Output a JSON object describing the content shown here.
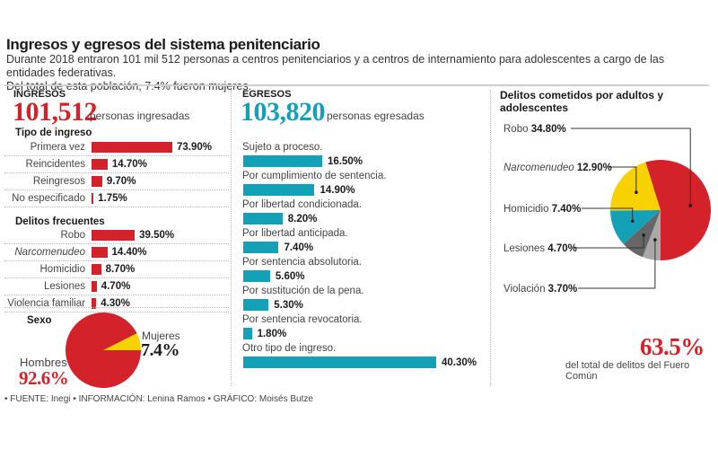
{
  "header": {
    "title": "Ingresos y egresos del sistema penitenciario",
    "subtitle_line1": "Durante 2018 entraron 101 mil 512 personas a centros penitenciarios y a centros de internamiento para adolescentes a cargo de las entidades federativas.",
    "subtitle_line2": "Del total de esta población, 7.4% fueron mujeres."
  },
  "ingresos": {
    "heading": "INGRESOS",
    "total": "101,512",
    "total_label": "personas ingresadas",
    "color": "#d3222a"
  },
  "egresos": {
    "heading": "EGRESOS",
    "total": "103,820",
    "total_label": "personas egresadas",
    "color": "#14a0b6"
  },
  "delitos_pie": {
    "heading": "Delitos cometidos por adultos y adolescentes",
    "summary_value": "63.5%",
    "summary_label": "del total de delitos del Fuero Común"
  },
  "footer": "• FUENTE: Inegi • INFORMACIÓN: Lenina Ramos • GRÁFICO: Moisés Butze",
  "chart_data": [
    {
      "type": "bar",
      "title": "Tipo de ingreso",
      "orientation": "horizontal",
      "categories": [
        "Primera vez",
        "Reincidentes",
        "Reingresos",
        "No especificado"
      ],
      "values": [
        73.9,
        14.7,
        9.7,
        1.75
      ],
      "labels": [
        "73.90%",
        "14.70%",
        "9.70%",
        "1.75%"
      ],
      "color": "#d3222a",
      "unit": "%"
    },
    {
      "type": "bar",
      "title": "Delitos frecuentes",
      "orientation": "horizontal",
      "categories": [
        "Robo",
        "Narcomenudeo",
        "Homicidio",
        "Lesiones",
        "Violencia familiar"
      ],
      "values": [
        39.5,
        14.4,
        8.7,
        4.7,
        4.3
      ],
      "labels": [
        "39.50%",
        "14.40%",
        "8.70%",
        "4.70%",
        "4.30%"
      ],
      "color": "#d3222a",
      "unit": "%"
    },
    {
      "type": "pie",
      "title": "Sexo",
      "categories": [
        "Hombres",
        "Mujeres"
      ],
      "values": [
        92.6,
        7.4
      ],
      "labels": [
        "92.6%",
        "7.4%"
      ],
      "colors": [
        "#d3222a",
        "#f7d200"
      ]
    },
    {
      "type": "bar",
      "title": "Egresos",
      "orientation": "horizontal",
      "categories": [
        "Sujeto a proceso.",
        "Por cumplimiento de sentencia.",
        "Por libertad condicionada.",
        "Por libertad anticipada.",
        "Por sentencia absolutoria.",
        "Por sustitución de la pena.",
        "Por sentencia revocatoria.",
        "Otro tipo de ingreso."
      ],
      "values": [
        16.5,
        14.9,
        8.2,
        7.4,
        5.6,
        5.3,
        1.8,
        40.3
      ],
      "labels": [
        "16.50%",
        "14.90%",
        "8.20%",
        "7.40%",
        "5.60%",
        "5.30%",
        "1.80%",
        "40.30%"
      ],
      "color": "#14a0b6",
      "unit": "%"
    },
    {
      "type": "pie",
      "title": "Delitos cometidos por adultos y adolescentes",
      "categories": [
        "Robo",
        "Narcomenudeo",
        "Homicidio",
        "Lesiones",
        "Violación"
      ],
      "values": [
        34.8,
        12.9,
        7.4,
        4.7,
        3.7
      ],
      "labels": [
        "34.80%",
        "12.90%",
        "7.40%",
        "4.70%",
        "3.70%"
      ],
      "colors": [
        "#d3222a",
        "#f7d200",
        "#14a0b6",
        "#666666",
        "#a9a9a9"
      ],
      "total_shown": "63.5%"
    }
  ]
}
